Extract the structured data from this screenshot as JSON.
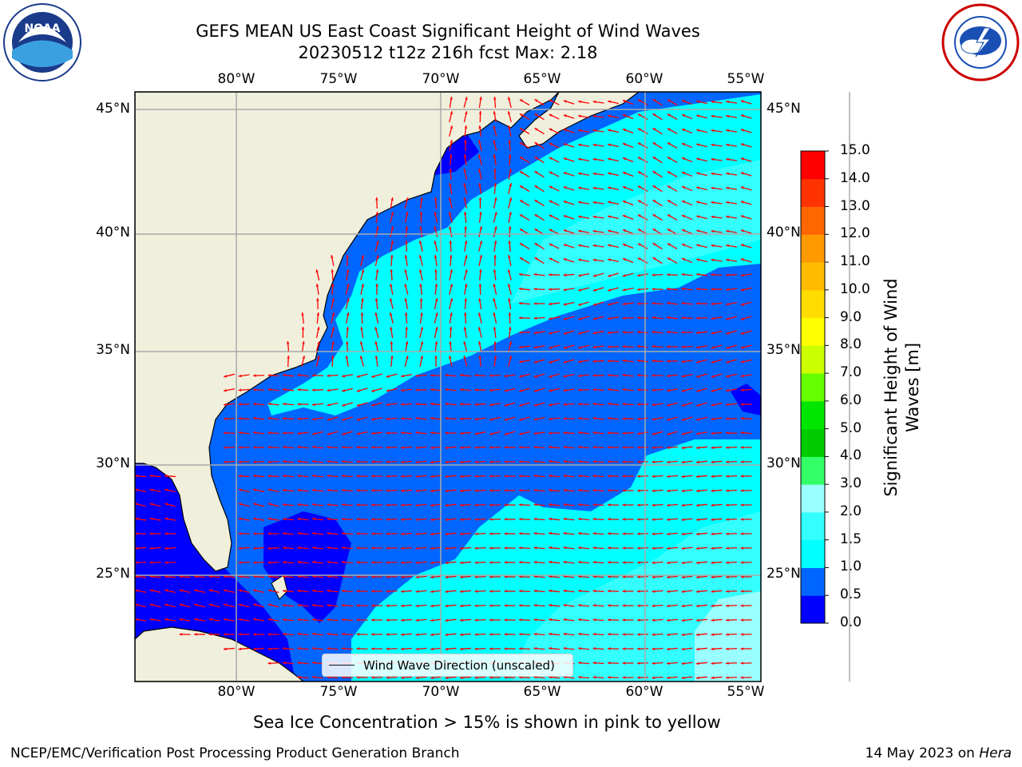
{
  "title": {
    "line1": "GEFS MEAN US East Coast Significant Height of Wind Waves",
    "line2": "20230512 t12z 216h fcst   Max: 2.18"
  },
  "map": {
    "lon_labels": [
      "80°W",
      "75°W",
      "70°W",
      "65°W",
      "60°W",
      "55°W"
    ],
    "lat_labels": [
      "45°N",
      "40°N",
      "35°N",
      "30°N",
      "25°N"
    ],
    "lon_range": [
      -85,
      -54.5
    ],
    "lat_range": [
      20,
      46
    ],
    "legend_label": "Wind Wave Direction (unscaled)",
    "arrow_color": "#ff0000",
    "land_color": "#efefdc",
    "grid": true
  },
  "colorbar": {
    "title": "Significant Height of Wind Waves [m]",
    "title_line1": "Significant Height of Wind",
    "title_line2": "Waves [m]",
    "levels": [
      "0.0",
      "0.5",
      "1.0",
      "1.5",
      "2.0",
      "3.0",
      "4.0",
      "5.0",
      "6.0",
      "7.0",
      "8.0",
      "9.0",
      "10.0",
      "11.0",
      "12.0",
      "13.0",
      "14.0",
      "15.0"
    ],
    "colors": [
      "#0000ff",
      "#0066ff",
      "#00ffff",
      "#33ffff",
      "#99ffff",
      "#33ff66",
      "#00cc00",
      "#00e600",
      "#66ff00",
      "#ccff00",
      "#ffff00",
      "#ffdd00",
      "#ffbb00",
      "#ff9900",
      "#ff6600",
      "#ff3300",
      "#ff0000"
    ]
  },
  "chart_data": {
    "type": "heatmap",
    "title": "GEFS MEAN US East Coast Significant Height of Wind Waves",
    "subtitle": "20230512 t12z 216h fcst   Max: 2.18",
    "max_value": 2.18,
    "unit": "m",
    "colorbar_range": [
      0.0,
      15.0
    ],
    "legend": "top-right colorbar"
  },
  "footer": {
    "note": "Sea Ice Concentration > 15% is shown in pink to yellow",
    "credit": "NCEP/EMC/Verification Post Processing Product Generation Branch",
    "date": "14 May 2023 on ",
    "machine": "Hera"
  },
  "logos": {
    "noaa_text": "NOAA",
    "nws_icon": "nws-logo-icon"
  }
}
